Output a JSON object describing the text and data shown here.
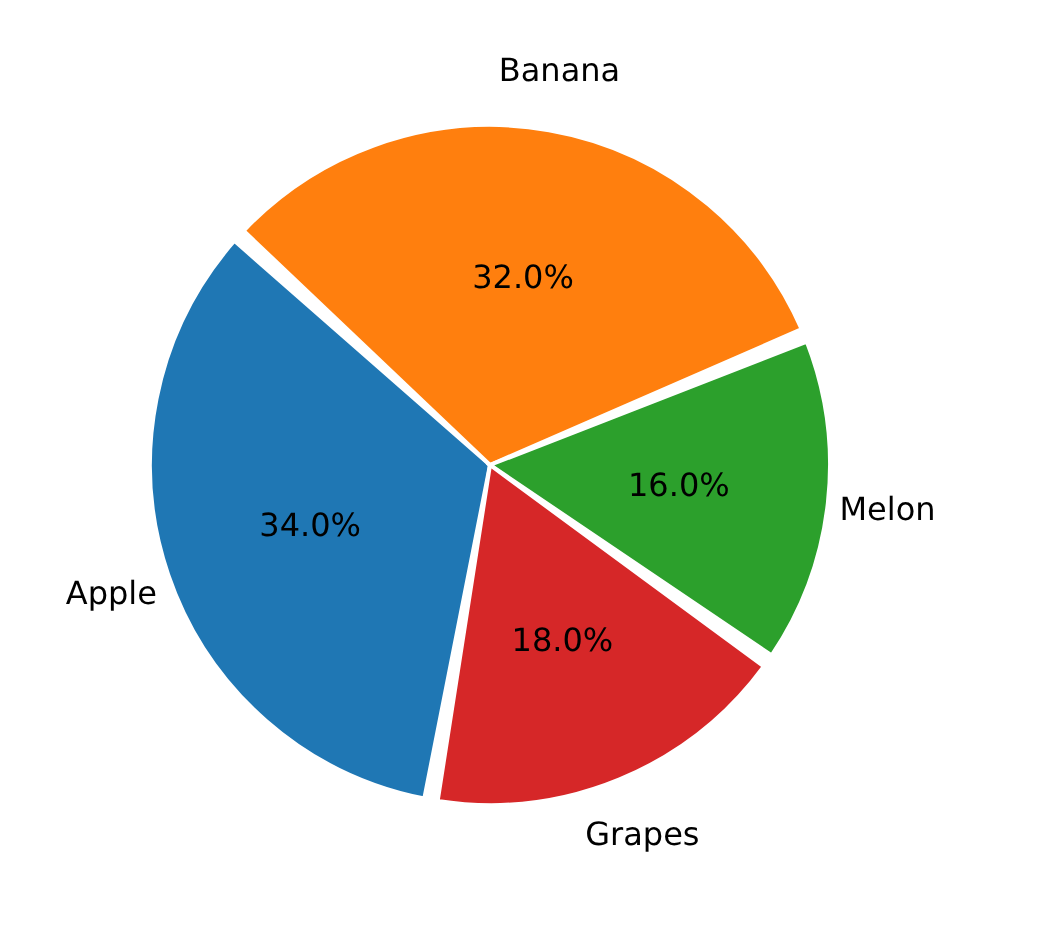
{
  "chart_data": {
    "type": "pie",
    "categories": [
      "Apple",
      "Banana",
      "Melon",
      "Grapes"
    ],
    "values": [
      34,
      32,
      16,
      18
    ],
    "colors": [
      "#1f77b4",
      "#ff7f0e",
      "#2ca02c",
      "#d62728"
    ],
    "value_labels": [
      "34.0%",
      "32.0%",
      "16.0%",
      "18.0%"
    ]
  }
}
